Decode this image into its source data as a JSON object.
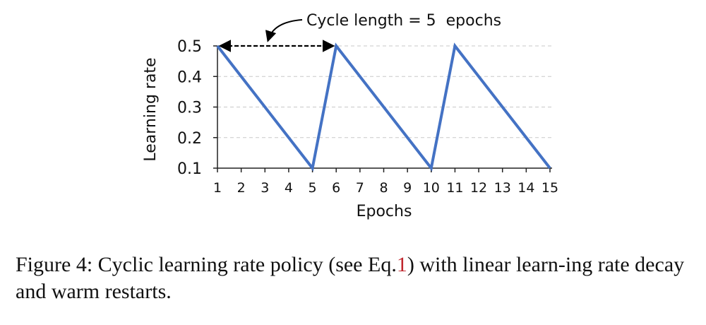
{
  "chart_data": {
    "type": "line",
    "xlabel": "Epochs",
    "ylabel": "Learning rate",
    "x_ticks": [
      1,
      2,
      3,
      4,
      5,
      6,
      7,
      8,
      9,
      10,
      11,
      12,
      13,
      14,
      15
    ],
    "y_ticks": [
      0.1,
      0.2,
      0.3,
      0.4,
      0.5
    ],
    "xlim": [
      1,
      15
    ],
    "ylim": [
      0.1,
      0.5
    ],
    "grid": "horizontal-dashed",
    "series": [
      {
        "color": "#4472c4",
        "x": [
          1,
          5,
          6,
          10,
          11,
          15
        ],
        "y": [
          0.5,
          0.1,
          0.5,
          0.1,
          0.5,
          0.1
        ]
      }
    ],
    "annotation": {
      "text": "Cycle length = 5  epochs",
      "arrow_from_x": 1,
      "arrow_to_x": 6,
      "arrow_y": 0.5
    }
  },
  "caption": {
    "prefix": "Figure 4: Cyclic learning rate policy (see Eq.",
    "ref": "1",
    "suffix": ") with linear learn-ing rate decay and warm restarts."
  }
}
